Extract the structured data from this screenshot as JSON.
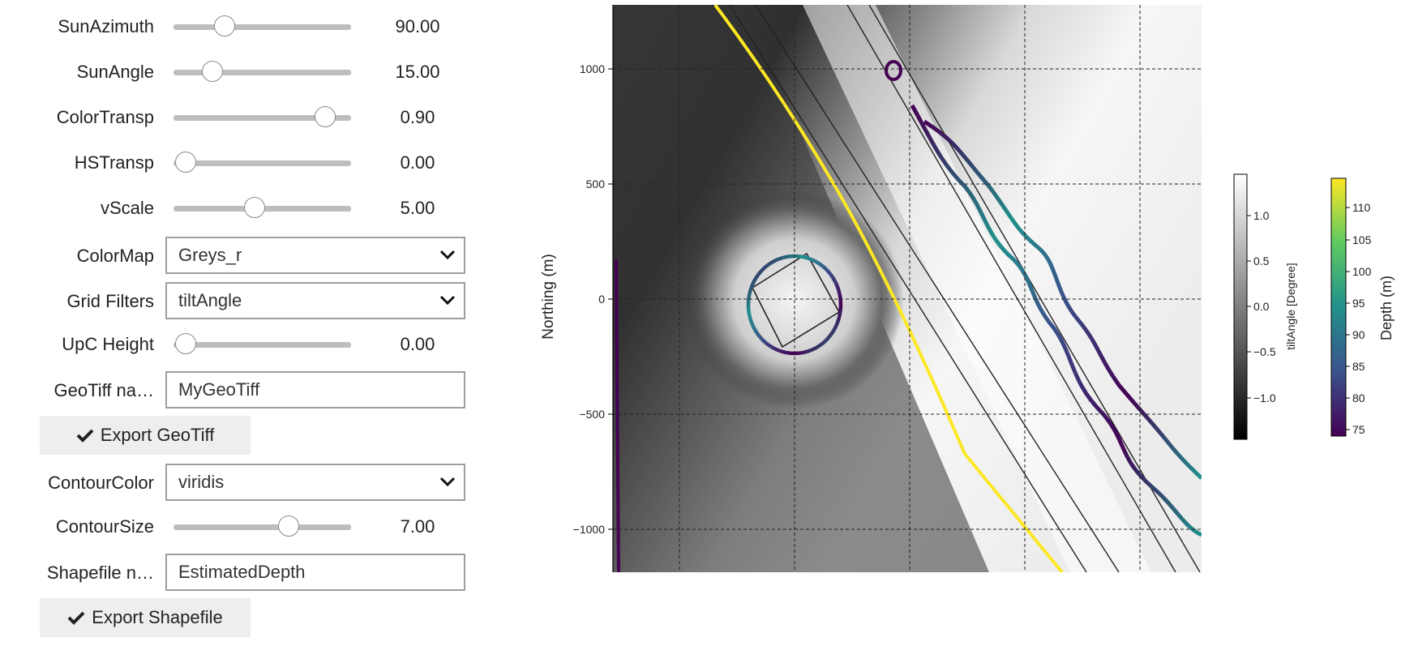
{
  "controls": {
    "sun_azimuth": {
      "label": "SunAzimuth",
      "value": "90.00",
      "fraction": 0.26
    },
    "sun_angle": {
      "label": "SunAngle",
      "value": "15.00",
      "fraction": 0.18
    },
    "color_transp": {
      "label": "ColorTransp",
      "value": "0.90",
      "fraction": 0.9
    },
    "hs_transp": {
      "label": "HSTransp",
      "value": "0.00",
      "fraction": 0.01
    },
    "vscale": {
      "label": "vScale",
      "value": "5.00",
      "fraction": 0.45
    },
    "colormap": {
      "label": "ColorMap",
      "value": "Greys_r"
    },
    "grid_filters": {
      "label": "Grid Filters",
      "value": "tiltAngle"
    },
    "upc_height": {
      "label": "UpC Height",
      "value": "0.00",
      "fraction": 0.01
    },
    "geotiff_name": {
      "label": "GeoTiff na…",
      "value": "MyGeoTiff"
    },
    "export_geotiff": {
      "label": "Export GeoTiff"
    },
    "contour_color": {
      "label": "ContourColor",
      "value": "viridis"
    },
    "contour_size": {
      "label": "ContourSize",
      "value": "7.00",
      "fraction": 0.67
    },
    "shapefile_name": {
      "label": "Shapefile n…",
      "value": "EstimatedDepth"
    },
    "export_shapefile": {
      "label": "Export Shapefile"
    }
  },
  "plot": {
    "ylabel": "Northing (m)",
    "yticks": [
      "1000",
      "500",
      "0",
      "−500",
      "−1000"
    ],
    "colorbar_tilt": {
      "label": "tiltAngle [Degree]",
      "ticks": [
        "1.0",
        "0.5",
        "0.0",
        "−0.5",
        "−1.0"
      ],
      "colormap": "Greys_r"
    },
    "colorbar_depth": {
      "label": "Depth (m)",
      "ticks": [
        "110",
        "105",
        "100",
        "95",
        "90",
        "85",
        "80",
        "75"
      ],
      "colormap": "viridis"
    }
  },
  "colors": {
    "track": "#bdbdbd",
    "viridis": [
      "#440154",
      "#3b528b",
      "#21918c",
      "#5ec962",
      "#fde725"
    ]
  },
  "icons": {
    "dropdown": "chevron-down-icon",
    "export": "check-icon"
  }
}
